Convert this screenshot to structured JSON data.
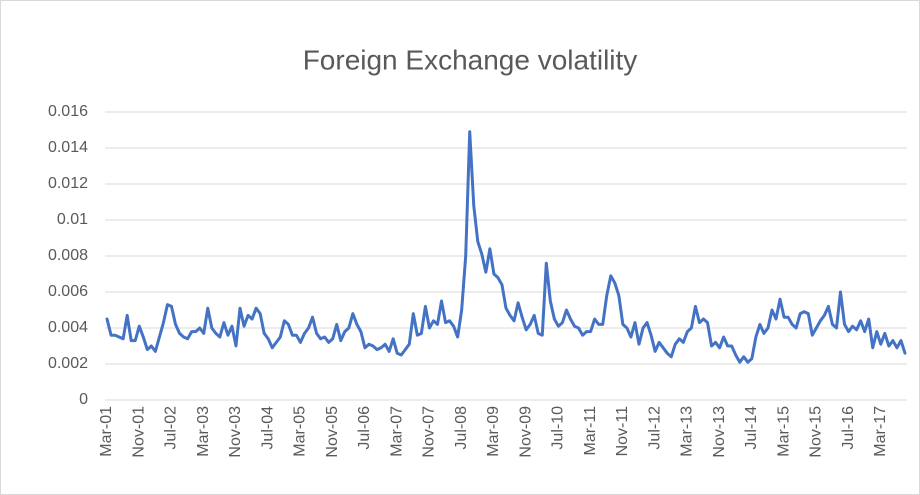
{
  "chart_data": {
    "type": "line",
    "title": "Foreign Exchange volatility",
    "categories": [
      "Mar-01",
      null,
      null,
      null,
      null,
      null,
      null,
      null,
      "Nov-01",
      null,
      null,
      null,
      null,
      null,
      null,
      null,
      "Jul-02",
      null,
      null,
      null,
      null,
      null,
      null,
      null,
      "Mar-03",
      null,
      null,
      null,
      null,
      null,
      null,
      null,
      "Nov-03",
      null,
      null,
      null,
      null,
      null,
      null,
      null,
      "Jul-04",
      null,
      null,
      null,
      null,
      null,
      null,
      null,
      "Mar-05",
      null,
      null,
      null,
      null,
      null,
      null,
      null,
      "Nov-05",
      null,
      null,
      null,
      null,
      null,
      null,
      null,
      "Jul-06",
      null,
      null,
      null,
      null,
      null,
      null,
      null,
      "Mar-07",
      null,
      null,
      null,
      null,
      null,
      null,
      null,
      "Nov-07",
      null,
      null,
      null,
      null,
      null,
      null,
      null,
      "Jul-08",
      null,
      null,
      null,
      null,
      null,
      null,
      null,
      "Mar-09",
      null,
      null,
      null,
      null,
      null,
      null,
      null,
      "Nov-09",
      null,
      null,
      null,
      null,
      null,
      null,
      null,
      "Jul-10",
      null,
      null,
      null,
      null,
      null,
      null,
      null,
      "Mar-11",
      null,
      null,
      null,
      null,
      null,
      null,
      null,
      "Nov-11",
      null,
      null,
      null,
      null,
      null,
      null,
      null,
      "Jul-12",
      null,
      null,
      null,
      null,
      null,
      null,
      null,
      "Mar-13",
      null,
      null,
      null,
      null,
      null,
      null,
      null,
      "Nov-13",
      null,
      null,
      null,
      null,
      null,
      null,
      null,
      "Jul-14",
      null,
      null,
      null,
      null,
      null,
      null,
      null,
      "Mar-15",
      null,
      null,
      null,
      null,
      null,
      null,
      null,
      "Nov-15",
      null,
      null,
      null,
      null,
      null,
      null,
      null,
      "Jul-16",
      null,
      null,
      null,
      null,
      null,
      null,
      null,
      "Mar-17",
      null,
      null,
      null,
      null,
      null,
      null
    ],
    "series": [
      {
        "name": "Foreign Exchange volatility",
        "color": "#4472c4",
        "values": [
          0.0045,
          0.0036,
          0.0036,
          0.0035,
          0.0034,
          0.0047,
          0.0033,
          0.0033,
          0.0041,
          0.0035,
          0.0028,
          0.003,
          0.0027,
          0.0035,
          0.0043,
          0.0053,
          0.0052,
          0.0042,
          0.0037,
          0.0035,
          0.0034,
          0.0038,
          0.0038,
          0.004,
          0.0037,
          0.0051,
          0.004,
          0.0037,
          0.0035,
          0.0043,
          0.0036,
          0.0041,
          0.003,
          0.0051,
          0.0041,
          0.0047,
          0.0045,
          0.0051,
          0.0048,
          0.0037,
          0.0034,
          0.0029,
          0.0032,
          0.0035,
          0.0044,
          0.0042,
          0.0036,
          0.0036,
          0.0032,
          0.0037,
          0.004,
          0.0046,
          0.0037,
          0.0034,
          0.0035,
          0.0032,
          0.0034,
          0.0042,
          0.0033,
          0.0038,
          0.004,
          0.0048,
          0.0042,
          0.0038,
          0.0029,
          0.0031,
          0.003,
          0.0028,
          0.0029,
          0.0031,
          0.0027,
          0.0034,
          0.0026,
          0.0025,
          0.0028,
          0.0031,
          0.0048,
          0.0036,
          0.0037,
          0.0052,
          0.004,
          0.0044,
          0.0042,
          0.0055,
          0.0043,
          0.0044,
          0.0041,
          0.0035,
          0.005,
          0.008,
          0.0149,
          0.0108,
          0.0088,
          0.0081,
          0.0071,
          0.0084,
          0.007,
          0.0068,
          0.0064,
          0.0051,
          0.0047,
          0.0044,
          0.0054,
          0.0046,
          0.0039,
          0.0042,
          0.0047,
          0.0037,
          0.0036,
          0.0076,
          0.0055,
          0.0045,
          0.0041,
          0.0043,
          0.005,
          0.0045,
          0.0041,
          0.004,
          0.0036,
          0.0038,
          0.0038,
          0.0045,
          0.0042,
          0.0042,
          0.0058,
          0.0069,
          0.0065,
          0.0058,
          0.0042,
          0.004,
          0.0035,
          0.0043,
          0.0031,
          0.004,
          0.0043,
          0.0036,
          0.0027,
          0.0032,
          0.0029,
          0.0026,
          0.0024,
          0.0031,
          0.0034,
          0.0032,
          0.0038,
          0.004,
          0.0052,
          0.0043,
          0.0045,
          0.0043,
          0.003,
          0.0032,
          0.0029,
          0.0035,
          0.003,
          0.003,
          0.0025,
          0.0021,
          0.0024,
          0.0021,
          0.0023,
          0.0035,
          0.0042,
          0.0037,
          0.004,
          0.005,
          0.0045,
          0.0056,
          0.0046,
          0.0046,
          0.0042,
          0.004,
          0.0048,
          0.0049,
          0.0048,
          0.0036,
          0.004,
          0.0044,
          0.0047,
          0.0052,
          0.0042,
          0.004,
          0.006,
          0.0042,
          0.0038,
          0.0041,
          0.0039,
          0.0044,
          0.0038,
          0.0045,
          0.0029,
          0.0038,
          0.0031,
          0.0037,
          0.003,
          0.0033,
          0.0029,
          0.0033,
          0.0026
        ]
      }
    ],
    "ylim": [
      0,
      0.016
    ],
    "yticks": [
      0,
      0.002,
      0.004,
      0.006,
      0.008,
      0.01,
      0.012,
      0.014,
      0.016
    ],
    "grid": true
  }
}
